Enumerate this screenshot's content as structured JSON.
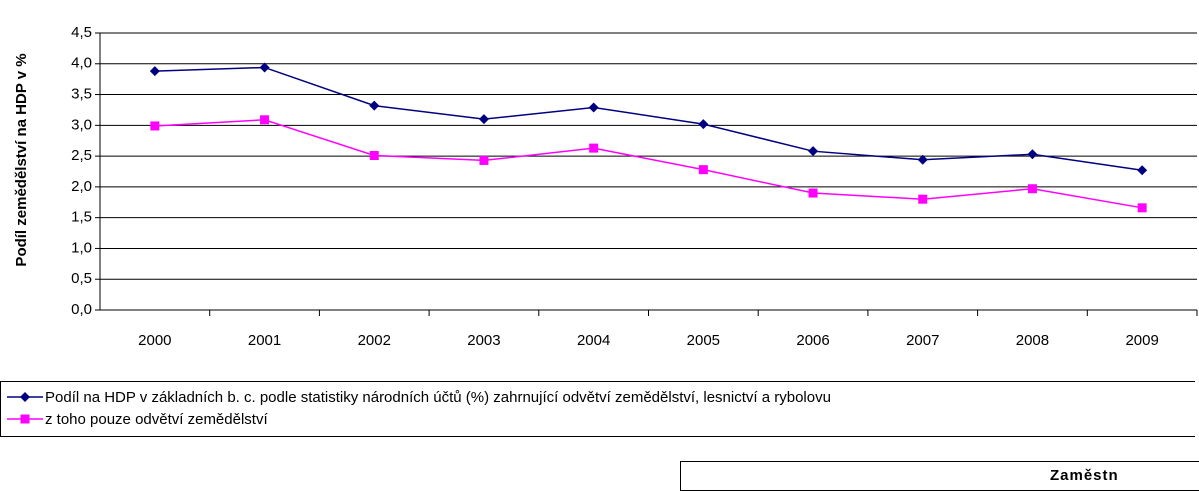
{
  "chart_data": {
    "type": "line",
    "y_label": "Podíl zemědělství na HDP v %",
    "categories": [
      "2000",
      "2001",
      "2002",
      "2003",
      "2004",
      "2005",
      "2006",
      "2007",
      "2008",
      "2009"
    ],
    "series": [
      {
        "name": "Podíl na HDP v základních b. c. podle statistiky národních účtů (%) zahrnující odvětví zemědělství, lesnictví a rybolovu",
        "color": "#000080",
        "marker": "diamond",
        "values": [
          3.88,
          3.94,
          3.32,
          3.1,
          3.29,
          3.02,
          2.58,
          2.44,
          2.53,
          2.27
        ]
      },
      {
        "name": "z toho pouze odvětví zemědělství",
        "color": "#ff00ff",
        "marker": "square",
        "values": [
          2.99,
          3.09,
          2.51,
          2.43,
          2.63,
          2.28,
          1.9,
          1.8,
          1.97,
          1.66
        ]
      }
    ],
    "ylim": [
      0,
      4.5
    ],
    "yticks": [
      {
        "value": 0,
        "label": "0,0"
      },
      {
        "value": 0.5,
        "label": "0,5"
      },
      {
        "value": 1,
        "label": "1,0"
      },
      {
        "value": 1.5,
        "label": "1,5"
      },
      {
        "value": 2,
        "label": "2,0"
      },
      {
        "value": 2.5,
        "label": "2,5"
      },
      {
        "value": 3,
        "label": "3,0"
      },
      {
        "value": 3.5,
        "label": "3,5"
      },
      {
        "value": 4,
        "label": "4,0"
      },
      {
        "value": 4.5,
        "label": "4,5"
      }
    ],
    "grid": true,
    "legend": "bottom"
  },
  "next_panel": {
    "title": "Zaměstn"
  }
}
